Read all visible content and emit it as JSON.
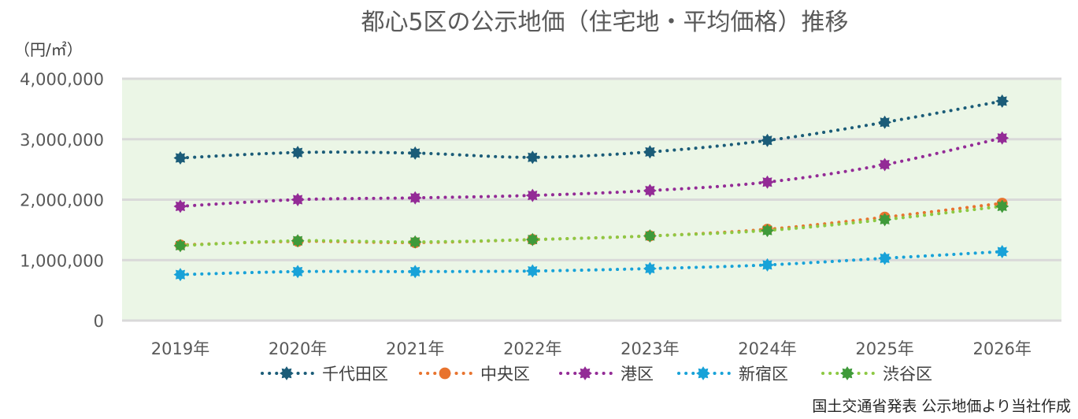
{
  "chart_data": {
    "type": "line",
    "title": "都心5区の公示地価（住宅地・平均価格）推移",
    "unit_label": "（円/㎡）",
    "source": "国土交通省発表 公示地価より当社作成",
    "categories": [
      "2019年",
      "2020年",
      "2021年",
      "2022年",
      "2023年",
      "2024年",
      "2025年",
      "2026年"
    ],
    "ylim": [
      0,
      4000000
    ],
    "yticks": [
      0,
      1000000,
      2000000,
      3000000,
      4000000
    ],
    "ytick_labels": [
      "0",
      "1,000,000",
      "2,000,000",
      "3,000,000",
      "4,000,000"
    ],
    "grid": true,
    "legend_position": "bottom",
    "plot_background": "#ebf6e6",
    "series": [
      {
        "name": "千代田区",
        "color": "#1b5c78",
        "marker": "star",
        "values": [
          2690000,
          2780000,
          2770000,
          2700000,
          2790000,
          2980000,
          3280000,
          3630000
        ]
      },
      {
        "name": "中央区",
        "color": "#e8732e",
        "marker": "circle",
        "values": [
          1250000,
          1310000,
          1290000,
          1340000,
          1400000,
          1510000,
          1710000,
          1940000
        ]
      },
      {
        "name": "港区",
        "color": "#932b96",
        "marker": "star",
        "values": [
          1890000,
          2000000,
          2030000,
          2070000,
          2150000,
          2290000,
          2580000,
          3020000
        ]
      },
      {
        "name": "新宿区",
        "color": "#18a2d8",
        "marker": "star",
        "values": [
          760000,
          810000,
          810000,
          820000,
          860000,
          920000,
          1030000,
          1140000
        ]
      },
      {
        "name": "渋谷区",
        "color": "#8dc943",
        "marker_color": "#3f9a3a",
        "marker": "star",
        "values": [
          1240000,
          1320000,
          1300000,
          1340000,
          1400000,
          1490000,
          1670000,
          1890000
        ]
      }
    ]
  }
}
